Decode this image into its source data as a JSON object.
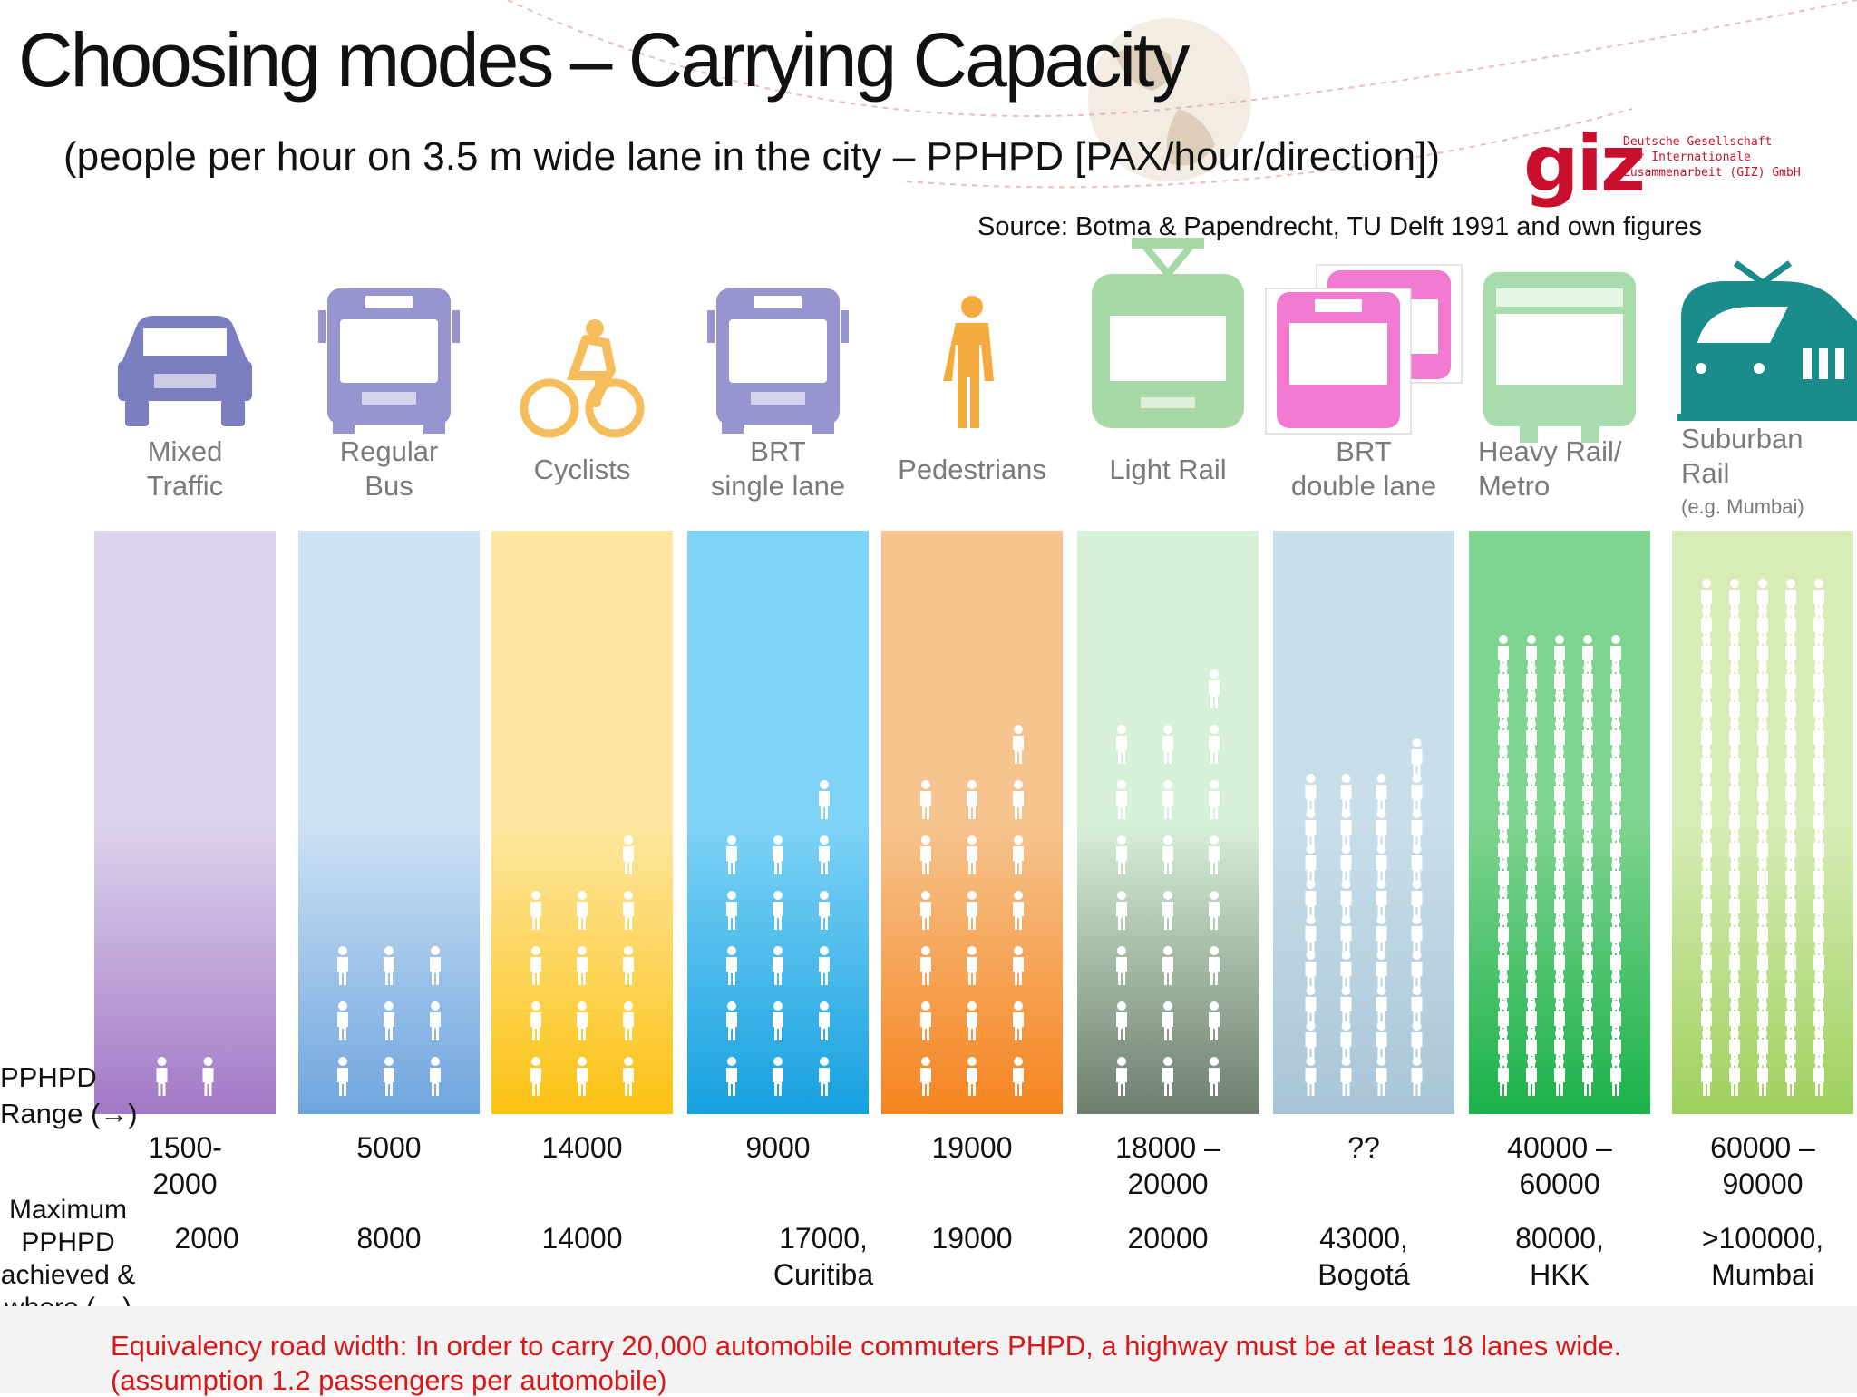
{
  "title": "Choosing modes – Carrying Capacity",
  "subtitle": "(people per hour on 3.5 m wide lane in the city – PPHPD [PAX/hour/direction])",
  "source": "Source: Botma & Papendrecht, TU Delft 1991 and own figures",
  "logo": {
    "mark": "giz",
    "line1": "Deutsche Gesellschaft",
    "line2": "für Internationale",
    "line3": "Zusammenarbeit (GIZ) GmbH"
  },
  "row_labels": {
    "pphpd_line1": "PPHPD",
    "pphpd_line2": "Range (→)",
    "max_line1": "Maximum",
    "max_line2": "PPHPD",
    "max_line3": "achieved &",
    "max_line4": "where (→)"
  },
  "footer": {
    "line1": "Equivalency road width: In order to  carry 20,000 automobile commuters PHPD, a highway must be at least 18 lanes wide.",
    "line2": "(assumption 1.2 passengers per automobile)"
  },
  "chart_data": {
    "type": "bar",
    "categories": [
      "Mixed Traffic",
      "Regular Bus",
      "Cyclists",
      "BRT single lane",
      "Pedestrians",
      "Light Rail",
      "BRT double lane",
      "Heavy Rail/ Metro",
      "Suburban Rail (e.g. Mumbai)"
    ],
    "series": [
      {
        "name": "PPHPD Range",
        "values": [
          2000,
          5000,
          14000,
          9000,
          19000,
          20000,
          null,
          60000,
          90000
        ],
        "labels": [
          [
            "1500-",
            "2000"
          ],
          [
            "5000"
          ],
          [
            "14000"
          ],
          [
            "9000"
          ],
          [
            "19000"
          ],
          [
            "18000 –",
            "20000"
          ],
          [
            "??"
          ],
          [
            "40000 –",
            "60000"
          ],
          [
            "60000 –",
            "90000"
          ]
        ]
      },
      {
        "name": "Maximum PPHPD achieved & where",
        "values": [
          2000,
          8000,
          14000,
          17000,
          19000,
          20000,
          43000,
          80000,
          100000
        ],
        "labels": [
          [
            "2000"
          ],
          [
            "8000"
          ],
          [
            "14000"
          ],
          [
            "17000,",
            "Curitiba"
          ],
          [
            "19000"
          ],
          [
            "20000"
          ],
          [
            "43000,",
            "Bogotá"
          ],
          [
            "80000,",
            "HKK"
          ],
          [
            ">100000,",
            "Mumbai"
          ]
        ]
      }
    ],
    "modes": [
      {
        "label": [
          "Mixed",
          "Traffic"
        ],
        "icon": "car-icon",
        "icon_color": "#7b7fc0",
        "top": "#ddd3ec",
        "bottom": "#a278c6",
        "figure_grid": [
          2,
          1
        ]
      },
      {
        "label": [
          "Regular",
          "Bus"
        ],
        "icon": "bus-icon",
        "icon_color": "#9795cf",
        "top": "#cde2f4",
        "bottom": "#6fa5de",
        "figure_grid": [
          3,
          3
        ]
      },
      {
        "label": [
          "Cyclists"
        ],
        "icon": "cyclist-icon",
        "icon_color": "#f6bd5c",
        "top": "#fde7a1",
        "bottom": "#fcc212",
        "figure_grid": [
          3,
          5
        ]
      },
      {
        "label": [
          "BRT",
          "single lane"
        ],
        "icon": "bus-icon",
        "icon_color": "#9795cf",
        "top": "#7fd3f6",
        "bottom": "#16a0df",
        "figure_grid": [
          3,
          6
        ]
      },
      {
        "label": [
          "Pedestrians"
        ],
        "icon": "pedestrian-icon",
        "icon_color": "#f4ab3e",
        "top": "#f5c48f",
        "bottom": "#f5841f",
        "figure_grid": [
          3,
          7
        ]
      },
      {
        "label": [
          "Light Rail"
        ],
        "icon": "tram-icon",
        "icon_color": "#a7d9a6",
        "top": "#d7f0d8",
        "bottom": "#6d7e6e",
        "figure_grid": [
          3,
          8
        ]
      },
      {
        "label": [
          "BRT",
          "double lane"
        ],
        "icon": "double-bus-icon",
        "icon_color": "#f27ad1",
        "top": "#c8dfe9",
        "bottom": "#a8c5d7",
        "figure_grid": [
          4,
          10
        ]
      },
      {
        "label": [
          "Heavy Rail/",
          "Metro"
        ],
        "icon": "metro-icon",
        "icon_color": "#a9dcac",
        "top": "#7fd48f",
        "bottom": "#1bb14b",
        "figure_grid": [
          5,
          16
        ]
      },
      {
        "label": [
          "Suburban",
          "Rail"
        ],
        "sublabel": "(e.g. Mumbai)",
        "icon": "suburban-train-icon",
        "icon_color": "#1a8c8c",
        "top": "#d7ecb7",
        "bottom": "#9fd15d",
        "figure_grid": [
          5,
          18
        ]
      }
    ]
  }
}
